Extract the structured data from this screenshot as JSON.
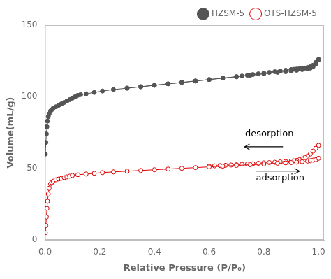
{
  "chart_data": {
    "type": "line",
    "xlabel": "Relative Pressure (P/P₀)",
    "ylabel": "Volume(mL/g)",
    "xlim": [
      0,
      1.02
    ],
    "ylim": [
      0,
      150
    ],
    "xticks": [
      {
        "value": 0,
        "label": "0.0"
      },
      0.2,
      0.4,
      0.6,
      0.8,
      {
        "value": 1,
        "label": "1.0"
      }
    ],
    "yticks": [
      0,
      50,
      100,
      150
    ],
    "grid": false,
    "legend": "upper right",
    "series": [
      {
        "name": "HZSM-5",
        "color": "#555555",
        "marker": "circle",
        "x": [
          0.001,
          0.003,
          0.005,
          0.007,
          0.009,
          0.012,
          0.015,
          0.02,
          0.025,
          0.03,
          0.04,
          0.05,
          0.06,
          0.07,
          0.08,
          0.09,
          0.1,
          0.11,
          0.12,
          0.13,
          0.15,
          0.18,
          0.21,
          0.25,
          0.3,
          0.35,
          0.4,
          0.45,
          0.5,
          0.55,
          0.6,
          0.65,
          0.7,
          0.75,
          0.8,
          0.85,
          0.88,
          0.9,
          0.92,
          0.94,
          0.96,
          0.97,
          0.98,
          0.99,
          1.0
        ],
        "values": [
          60,
          68,
          74,
          79,
          83,
          86,
          88,
          90,
          91,
          92,
          93,
          94,
          95,
          96,
          97,
          98,
          99,
          100,
          101,
          101.5,
          102,
          103,
          104,
          105,
          106,
          107,
          108,
          109,
          110,
          111,
          112,
          113,
          114,
          115,
          116,
          117,
          117.5,
          118,
          118.5,
          119,
          119.5,
          120,
          121,
          123,
          126
        ]
      },
      {
        "name": "HZSM-5",
        "color": "#555555",
        "marker": "circle",
        "x": [
          1.0,
          0.99,
          0.98,
          0.97,
          0.96,
          0.95,
          0.94,
          0.93,
          0.92,
          0.91,
          0.9,
          0.88,
          0.86,
          0.84,
          0.82,
          0.8,
          0.78,
          0.76,
          0.74,
          0.72,
          0.7,
          0.65,
          0.6,
          0.55,
          0.5,
          0.45,
          0.4,
          0.35,
          0.3
        ],
        "values": [
          126,
          124,
          122,
          121,
          120.5,
          120,
          119.8,
          119.6,
          119.4,
          119.2,
          119,
          118.5,
          118,
          117.5,
          117,
          116.5,
          116,
          115.5,
          115,
          114.5,
          114,
          113,
          112,
          111,
          110,
          109,
          108,
          107,
          106
        ]
      },
      {
        "name": "OTS-HZSM-5",
        "color": "#dd0000",
        "marker": "open circle",
        "x": [
          0.001,
          0.003,
          0.005,
          0.007,
          0.009,
          0.012,
          0.015,
          0.02,
          0.025,
          0.03,
          0.04,
          0.05,
          0.06,
          0.07,
          0.08,
          0.09,
          0.1,
          0.12,
          0.15,
          0.18,
          0.21,
          0.25,
          0.3,
          0.35,
          0.4,
          0.45,
          0.5,
          0.55,
          0.6,
          0.65,
          0.7,
          0.75,
          0.8,
          0.85,
          0.88,
          0.9,
          0.92,
          0.94,
          0.96,
          0.97,
          0.98,
          0.99,
          1.0
        ],
        "values": [
          5,
          10,
          16,
          22,
          27,
          32,
          36,
          39,
          40,
          41,
          42,
          42.5,
          43,
          43.5,
          44,
          44.5,
          45,
          45.5,
          46,
          46.5,
          47,
          47.5,
          48,
          48.5,
          49,
          49.5,
          50,
          50.5,
          51,
          51.5,
          52,
          52.5,
          53,
          53.5,
          53.8,
          54,
          54.3,
          54.6,
          55,
          55.3,
          55.7,
          56,
          57
        ]
      },
      {
        "name": "OTS-HZSM-5",
        "color": "#dd0000",
        "marker": "open circle",
        "x": [
          1.0,
          0.99,
          0.98,
          0.97,
          0.96,
          0.95,
          0.94,
          0.93,
          0.92,
          0.91,
          0.9,
          0.88,
          0.86,
          0.84,
          0.82,
          0.8,
          0.78,
          0.76,
          0.74,
          0.72,
          0.7,
          0.68,
          0.66,
          0.64,
          0.62,
          0.6
        ],
        "values": [
          66,
          64,
          62,
          60,
          58.5,
          57.5,
          56.5,
          56,
          55.5,
          55.2,
          55,
          54.8,
          54.5,
          54.2,
          54,
          53.8,
          53.5,
          53.2,
          53,
          52.8,
          52.5,
          52.3,
          52.1,
          51.9,
          51.7,
          51.5
        ]
      }
    ],
    "annotations": [
      {
        "text": "desorption",
        "x": 0.82,
        "y": 71,
        "arrow": {
          "x_start": 0.87,
          "x_end": 0.73,
          "y": 65
        }
      },
      {
        "text": "adsorption",
        "x": 0.86,
        "y": 40,
        "arrow": {
          "x_start": 0.77,
          "x_end": 0.93,
          "y": 48
        }
      }
    ]
  }
}
